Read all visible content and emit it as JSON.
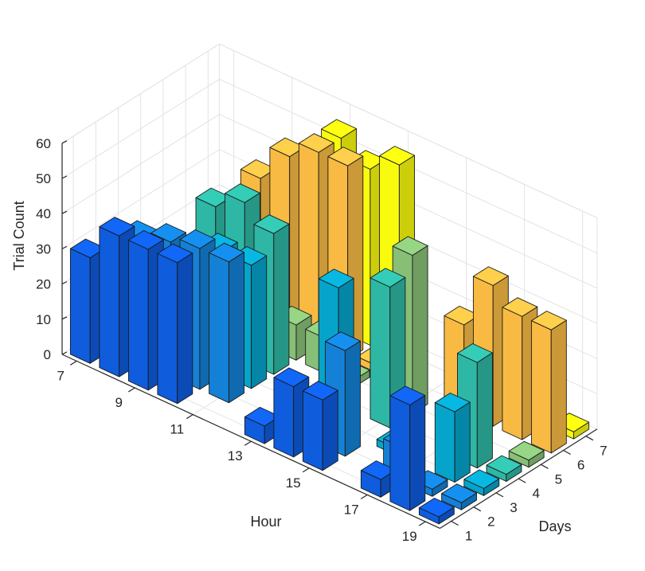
{
  "chart_data": {
    "type": "bar3d",
    "xlabel": "Hour",
    "ylabel": "Days",
    "zlabel": "Trial Count",
    "x_ticks": [
      "7",
      "9",
      "11",
      "13",
      "15",
      "17",
      "19"
    ],
    "y_ticks": [
      "1",
      "2",
      "3",
      "4",
      "5",
      "6",
      "7"
    ],
    "z_ticks": [
      "0",
      "10",
      "20",
      "30",
      "40",
      "50",
      "60"
    ],
    "zlim": [
      0,
      60
    ],
    "hours": [
      7,
      8,
      9,
      10,
      11,
      12,
      13,
      14,
      15,
      16,
      17,
      18,
      19
    ],
    "days": [
      1,
      2,
      3,
      4,
      5,
      6,
      7
    ],
    "day_colors": [
      "#352a87",
      "#0f5cdd",
      "#1481d6",
      "#06a4ca",
      "#2eb7a4",
      "#87bf77",
      "#f8ba43",
      "#f9fb0e"
    ],
    "grid": true,
    "values": [
      [
        30,
        0,
        0,
        0,
        0,
        0,
        0
      ],
      [
        40,
        35,
        0,
        0,
        0,
        0,
        0
      ],
      [
        40,
        38,
        0,
        40,
        0,
        40,
        0
      ],
      [
        40,
        40,
        35,
        45,
        0,
        50,
        0
      ],
      [
        0,
        40,
        35,
        40,
        10,
        55,
        55
      ],
      [
        0,
        0,
        0,
        0,
        10,
        55,
        50
      ],
      [
        5,
        0,
        0,
        0,
        2,
        2,
        55
      ],
      [
        20,
        0,
        40,
        0,
        0,
        0,
        0
      ],
      [
        20,
        30,
        0,
        40,
        45,
        0,
        0
      ],
      [
        0,
        0,
        2,
        0,
        0,
        25,
        5
      ],
      [
        5,
        10,
        0,
        0,
        0,
        40,
        5
      ],
      [
        30,
        2,
        20,
        30,
        0,
        35,
        0
      ],
      [
        2,
        2,
        2,
        2,
        2,
        35,
        2
      ]
    ]
  }
}
